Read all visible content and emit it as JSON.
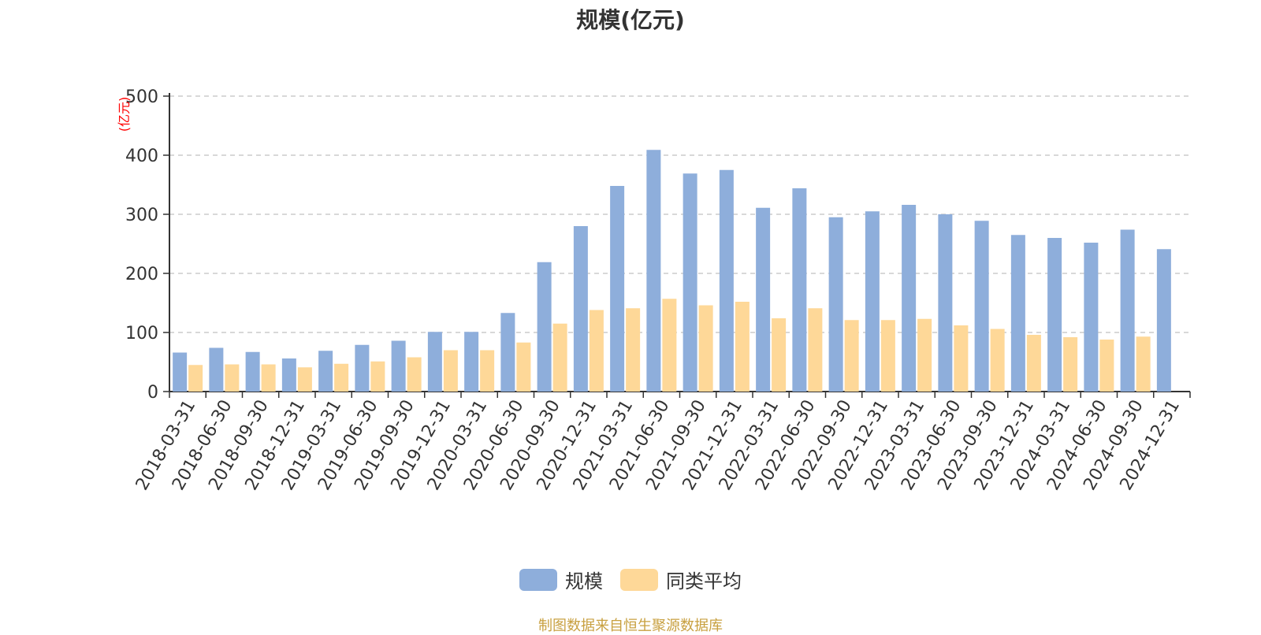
{
  "colors": {
    "series_main": "#8eaedb",
    "series_avg": "#fed898",
    "axis": "#333333",
    "grid": "#cccccc",
    "unit_label": "#ff0000",
    "footer": "#c8a040"
  },
  "chart_data": {
    "type": "bar",
    "title": "规模(亿元)",
    "ylabel": "(亿元)",
    "xlabel": "",
    "ylim": [
      0,
      500
    ],
    "yticks": [
      0,
      100,
      200,
      300,
      400,
      500
    ],
    "grid": true,
    "legend_position": "bottom",
    "categories": [
      "2018-03-31",
      "2018-06-30",
      "2018-09-30",
      "2018-12-31",
      "2019-03-31",
      "2019-06-30",
      "2019-09-30",
      "2019-12-31",
      "2020-03-31",
      "2020-06-30",
      "2020-09-30",
      "2020-12-31",
      "2021-03-31",
      "2021-06-30",
      "2021-09-30",
      "2021-12-31",
      "2022-03-31",
      "2022-06-30",
      "2022-09-30",
      "2022-12-31",
      "2023-03-31",
      "2023-06-30",
      "2023-09-30",
      "2023-12-31",
      "2024-03-31",
      "2024-06-30",
      "2024-09-30",
      "2024-12-31"
    ],
    "series": [
      {
        "name": "规模",
        "values": [
          66,
          74,
          67,
          56,
          69,
          79,
          86,
          101,
          101,
          133,
          219,
          280,
          348,
          409,
          369,
          375,
          311,
          344,
          295,
          305,
          316,
          300,
          289,
          265,
          260,
          252,
          274,
          241
        ]
      },
      {
        "name": "同类平均",
        "values": [
          45,
          46,
          46,
          41,
          47,
          51,
          58,
          70,
          70,
          83,
          115,
          138,
          141,
          157,
          146,
          152,
          124,
          141,
          121,
          121,
          123,
          112,
          106,
          96,
          92,
          88,
          93,
          null
        ]
      }
    ]
  },
  "footer": {
    "source_text": "制图数据来自恒生聚源数据库"
  }
}
